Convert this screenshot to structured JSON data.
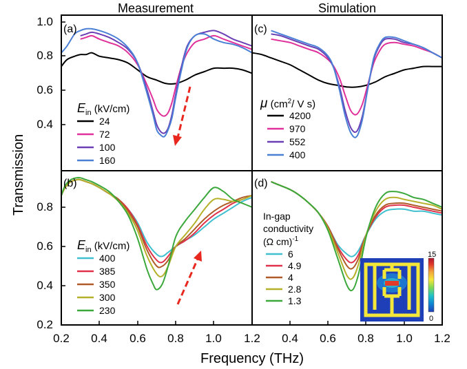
{
  "figure": {
    "left_title": "Measurement",
    "right_title": "Simulation",
    "xlabel": "Frequency (THz)",
    "ylabel": "Transmission",
    "x_ticks": [
      "0.2",
      "0.4",
      "0.6",
      "0.8",
      "1.0",
      "1.2"
    ],
    "y_ticks_top": [
      "1.0",
      "0.8",
      "0.6",
      "0.4"
    ],
    "y_ticks_bottom": [
      "0.8",
      "0.6",
      "0.4",
      "0.2"
    ],
    "inset": {
      "colorbar_max": "15",
      "colorbar_min": "0",
      "colors": [
        "#1f3fb8",
        "#0e86d4",
        "#1ec3c9",
        "#7ed957",
        "#f5e63a",
        "#f2a23a",
        "#e23b2a",
        "#b0122b"
      ]
    }
  },
  "chart_data": [
    {
      "type": "line",
      "panel": "(a)",
      "column": "Measurement",
      "xlim": [
        0.2,
        1.2
      ],
      "ylim": [
        0.25,
        1.0
      ],
      "legend_title": "E_in (kV/cm)",
      "legend_title_main": "E",
      "legend_title_sub": "in",
      "legend_title_unit": " (kV/cm)",
      "series": [
        {
          "name": "24",
          "color": "#000000",
          "x": [
            0.2,
            0.23,
            0.27,
            0.3,
            0.33,
            0.36,
            0.4,
            0.45,
            0.5,
            0.55,
            0.6,
            0.65,
            0.7,
            0.75,
            0.8,
            0.85,
            0.9,
            0.95,
            1.0,
            1.05,
            1.1,
            1.15,
            1.2
          ],
          "y": [
            0.74,
            0.78,
            0.8,
            0.81,
            0.81,
            0.82,
            0.8,
            0.79,
            0.78,
            0.76,
            0.72,
            0.68,
            0.66,
            0.64,
            0.64,
            0.66,
            0.69,
            0.71,
            0.73,
            0.73,
            0.73,
            0.72,
            0.7
          ]
        },
        {
          "name": "72",
          "color": "#e0309a",
          "x": [
            0.3,
            0.33,
            0.36,
            0.4,
            0.45,
            0.5,
            0.55,
            0.6,
            0.65,
            0.68,
            0.7,
            0.72,
            0.74,
            0.76,
            0.78,
            0.8,
            0.83,
            0.86,
            0.9,
            0.95,
            1.0,
            1.05,
            1.1,
            1.15,
            1.2
          ],
          "y": [
            0.9,
            0.91,
            0.92,
            0.9,
            0.88,
            0.86,
            0.82,
            0.75,
            0.63,
            0.55,
            0.49,
            0.46,
            0.45,
            0.47,
            0.53,
            0.62,
            0.74,
            0.82,
            0.88,
            0.9,
            0.92,
            0.9,
            0.88,
            0.86,
            0.84
          ]
        },
        {
          "name": "100",
          "color": "#6a3fb5",
          "x": [
            0.3,
            0.33,
            0.36,
            0.4,
            0.45,
            0.5,
            0.55,
            0.6,
            0.65,
            0.68,
            0.7,
            0.72,
            0.74,
            0.76,
            0.78,
            0.8,
            0.83,
            0.86,
            0.9,
            0.95,
            1.0,
            1.05,
            1.1,
            1.15,
            1.2
          ],
          "y": [
            0.92,
            0.93,
            0.94,
            0.93,
            0.91,
            0.88,
            0.84,
            0.76,
            0.6,
            0.48,
            0.4,
            0.36,
            0.35,
            0.38,
            0.46,
            0.58,
            0.74,
            0.86,
            0.92,
            0.94,
            0.95,
            0.93,
            0.9,
            0.88,
            0.86
          ]
        },
        {
          "name": "160",
          "color": "#4a7fd6",
          "x": [
            0.2,
            0.23,
            0.27,
            0.3,
            0.33,
            0.36,
            0.4,
            0.45,
            0.5,
            0.55,
            0.6,
            0.65,
            0.68,
            0.7,
            0.72,
            0.74,
            0.76,
            0.78,
            0.8,
            0.83,
            0.86,
            0.9,
            0.95,
            1.0,
            1.05,
            1.1,
            1.15,
            1.2
          ],
          "y": [
            0.82,
            0.86,
            0.93,
            0.95,
            0.96,
            0.96,
            0.95,
            0.93,
            0.9,
            0.85,
            0.76,
            0.58,
            0.46,
            0.37,
            0.34,
            0.33,
            0.37,
            0.44,
            0.56,
            0.72,
            0.85,
            0.92,
            0.93,
            0.9,
            0.88,
            0.87,
            0.85,
            0.82
          ]
        }
      ]
    },
    {
      "type": "line",
      "panel": "(b)",
      "column": "Measurement",
      "xlim": [
        0.2,
        1.2
      ],
      "ylim": [
        0.2,
        0.95
      ],
      "legend_title": "E_in (kV/cm)",
      "legend_title_main": "E",
      "legend_title_sub": "in",
      "legend_title_unit": " (kV/cm)",
      "series": [
        {
          "name": "400",
          "color": "#3fbfcf",
          "x": [
            0.2,
            0.22,
            0.25,
            0.28,
            0.3,
            0.33,
            0.36,
            0.4,
            0.45,
            0.5,
            0.55,
            0.6,
            0.65,
            0.7,
            0.73,
            0.76,
            0.8,
            0.85,
            0.9,
            0.95,
            1.0,
            1.05,
            1.1,
            1.15,
            1.2
          ],
          "y": [
            0.86,
            0.9,
            0.93,
            0.94,
            0.94,
            0.93,
            0.92,
            0.9,
            0.87,
            0.84,
            0.79,
            0.72,
            0.62,
            0.56,
            0.55,
            0.57,
            0.6,
            0.63,
            0.66,
            0.7,
            0.74,
            0.77,
            0.8,
            0.83,
            0.85
          ]
        },
        {
          "name": "385",
          "color": "#e0304a",
          "x": [
            0.2,
            0.22,
            0.25,
            0.28,
            0.3,
            0.33,
            0.36,
            0.4,
            0.45,
            0.5,
            0.55,
            0.6,
            0.65,
            0.7,
            0.73,
            0.76,
            0.8,
            0.85,
            0.9,
            0.95,
            1.0,
            1.05,
            1.1,
            1.15,
            1.2
          ],
          "y": [
            0.86,
            0.9,
            0.93,
            0.94,
            0.94,
            0.93,
            0.92,
            0.9,
            0.87,
            0.84,
            0.79,
            0.71,
            0.6,
            0.53,
            0.52,
            0.55,
            0.6,
            0.63,
            0.67,
            0.72,
            0.76,
            0.79,
            0.82,
            0.84,
            0.86
          ]
        },
        {
          "name": "350",
          "color": "#b05a28",
          "x": [
            0.2,
            0.22,
            0.25,
            0.28,
            0.3,
            0.33,
            0.36,
            0.4,
            0.45,
            0.5,
            0.55,
            0.6,
            0.65,
            0.7,
            0.73,
            0.76,
            0.8,
            0.85,
            0.9,
            0.95,
            1.0,
            1.05,
            1.1,
            1.15,
            1.2
          ],
          "y": [
            0.86,
            0.9,
            0.93,
            0.94,
            0.94,
            0.93,
            0.92,
            0.9,
            0.87,
            0.84,
            0.78,
            0.7,
            0.58,
            0.5,
            0.5,
            0.53,
            0.6,
            0.64,
            0.69,
            0.74,
            0.78,
            0.81,
            0.83,
            0.85,
            0.86
          ]
        },
        {
          "name": "300",
          "color": "#b5b02a",
          "x": [
            0.2,
            0.22,
            0.25,
            0.28,
            0.3,
            0.33,
            0.36,
            0.4,
            0.45,
            0.5,
            0.55,
            0.6,
            0.65,
            0.7,
            0.73,
            0.76,
            0.8,
            0.85,
            0.9,
            0.95,
            1.0,
            1.05,
            1.1,
            1.15,
            1.2
          ],
          "y": [
            0.86,
            0.9,
            0.93,
            0.94,
            0.94,
            0.93,
            0.92,
            0.9,
            0.87,
            0.83,
            0.77,
            0.68,
            0.55,
            0.46,
            0.45,
            0.5,
            0.6,
            0.66,
            0.72,
            0.79,
            0.84,
            0.84,
            0.83,
            0.84,
            0.86
          ]
        },
        {
          "name": "230",
          "color": "#3aa83a",
          "x": [
            0.2,
            0.22,
            0.25,
            0.28,
            0.3,
            0.33,
            0.36,
            0.4,
            0.45,
            0.5,
            0.55,
            0.6,
            0.65,
            0.68,
            0.7,
            0.73,
            0.76,
            0.8,
            0.85,
            0.9,
            0.95,
            1.0,
            1.05,
            1.1,
            1.15,
            1.2
          ],
          "y": [
            0.86,
            0.91,
            0.94,
            0.95,
            0.95,
            0.94,
            0.93,
            0.91,
            0.88,
            0.83,
            0.76,
            0.64,
            0.48,
            0.41,
            0.38,
            0.41,
            0.5,
            0.65,
            0.73,
            0.79,
            0.85,
            0.9,
            0.88,
            0.84,
            0.82,
            0.8
          ]
        }
      ]
    },
    {
      "type": "line",
      "panel": "(c)",
      "column": "Simulation",
      "xlim": [
        0.2,
        1.2
      ],
      "ylim": [
        0.25,
        1.0
      ],
      "legend_title": "μ (cm2/ V s)",
      "legend_title_main": "μ",
      "legend_title_unit": " (cm",
      "legend_title_sup": "2",
      "legend_title_tail": "/ V s)",
      "series": [
        {
          "name": "4200",
          "color": "#000000",
          "x": [
            0.2,
            0.25,
            0.3,
            0.35,
            0.4,
            0.45,
            0.5,
            0.55,
            0.6,
            0.65,
            0.7,
            0.75,
            0.8,
            0.85,
            0.9,
            0.95,
            1.0,
            1.05,
            1.1,
            1.15,
            1.2
          ],
          "y": [
            0.82,
            0.81,
            0.79,
            0.77,
            0.75,
            0.72,
            0.69,
            0.66,
            0.64,
            0.63,
            0.62,
            0.62,
            0.63,
            0.65,
            0.68,
            0.7,
            0.72,
            0.73,
            0.74,
            0.74,
            0.74
          ]
        },
        {
          "name": "970",
          "color": "#e0309a",
          "x": [
            0.3,
            0.35,
            0.4,
            0.45,
            0.5,
            0.55,
            0.6,
            0.63,
            0.66,
            0.69,
            0.72,
            0.75,
            0.78,
            0.81,
            0.84,
            0.87,
            0.9,
            0.95,
            1.0,
            1.05,
            1.1,
            1.15,
            1.2
          ],
          "y": [
            0.9,
            0.89,
            0.88,
            0.86,
            0.84,
            0.82,
            0.78,
            0.74,
            0.67,
            0.57,
            0.48,
            0.46,
            0.52,
            0.64,
            0.76,
            0.83,
            0.87,
            0.88,
            0.87,
            0.86,
            0.84,
            0.82,
            0.79
          ]
        },
        {
          "name": "552",
          "color": "#6a3fb5",
          "x": [
            0.3,
            0.35,
            0.4,
            0.45,
            0.5,
            0.55,
            0.6,
            0.63,
            0.66,
            0.69,
            0.72,
            0.75,
            0.78,
            0.81,
            0.84,
            0.87,
            0.9,
            0.95,
            1.0,
            1.05,
            1.1,
            1.15,
            1.2
          ],
          "y": [
            0.93,
            0.92,
            0.9,
            0.88,
            0.86,
            0.84,
            0.79,
            0.73,
            0.62,
            0.48,
            0.38,
            0.36,
            0.45,
            0.62,
            0.78,
            0.86,
            0.9,
            0.9,
            0.88,
            0.87,
            0.85,
            0.82,
            0.79
          ]
        },
        {
          "name": "400",
          "color": "#4a7fd6",
          "x": [
            0.3,
            0.35,
            0.4,
            0.45,
            0.5,
            0.55,
            0.6,
            0.63,
            0.66,
            0.69,
            0.72,
            0.75,
            0.78,
            0.81,
            0.84,
            0.87,
            0.9,
            0.95,
            1.0,
            1.05,
            1.1,
            1.15,
            1.2
          ],
          "y": [
            0.95,
            0.93,
            0.91,
            0.89,
            0.87,
            0.85,
            0.8,
            0.73,
            0.6,
            0.45,
            0.35,
            0.33,
            0.43,
            0.62,
            0.79,
            0.87,
            0.91,
            0.91,
            0.89,
            0.87,
            0.85,
            0.82,
            0.79
          ]
        }
      ]
    },
    {
      "type": "line",
      "panel": "(d)",
      "column": "Simulation",
      "xlim": [
        0.2,
        1.2
      ],
      "ylim": [
        0.2,
        0.95
      ],
      "legend_title_lines": [
        "In-gap",
        "conductivity",
        "(Ω cm)"
      ],
      "legend_title_sup": "-1",
      "series": [
        {
          "name": "6",
          "color": "#3fbfcf",
          "x": [
            0.3,
            0.35,
            0.4,
            0.45,
            0.5,
            0.55,
            0.6,
            0.65,
            0.7,
            0.73,
            0.76,
            0.8,
            0.85,
            0.9,
            0.95,
            1.0,
            1.05,
            1.1,
            1.15,
            1.2
          ],
          "y": [
            0.93,
            0.91,
            0.89,
            0.86,
            0.82,
            0.77,
            0.7,
            0.61,
            0.56,
            0.55,
            0.58,
            0.66,
            0.74,
            0.78,
            0.79,
            0.79,
            0.78,
            0.78,
            0.77,
            0.76
          ]
        },
        {
          "name": "4.9",
          "color": "#e0304a",
          "x": [
            0.3,
            0.35,
            0.4,
            0.45,
            0.5,
            0.55,
            0.6,
            0.65,
            0.7,
            0.73,
            0.76,
            0.8,
            0.85,
            0.9,
            0.95,
            1.0,
            1.05,
            1.1,
            1.15,
            1.2
          ],
          "y": [
            0.93,
            0.91,
            0.89,
            0.86,
            0.82,
            0.77,
            0.7,
            0.6,
            0.53,
            0.52,
            0.56,
            0.66,
            0.75,
            0.8,
            0.81,
            0.81,
            0.8,
            0.79,
            0.78,
            0.77
          ]
        },
        {
          "name": "4",
          "color": "#b05a28",
          "x": [
            0.3,
            0.35,
            0.4,
            0.45,
            0.5,
            0.55,
            0.6,
            0.65,
            0.7,
            0.73,
            0.76,
            0.8,
            0.85,
            0.9,
            0.95,
            1.0,
            1.05,
            1.1,
            1.15,
            1.2
          ],
          "y": [
            0.93,
            0.91,
            0.89,
            0.86,
            0.82,
            0.77,
            0.7,
            0.59,
            0.5,
            0.49,
            0.54,
            0.66,
            0.76,
            0.81,
            0.82,
            0.82,
            0.81,
            0.8,
            0.79,
            0.78
          ]
        },
        {
          "name": "2.8",
          "color": "#b5b02a",
          "x": [
            0.3,
            0.35,
            0.4,
            0.45,
            0.5,
            0.55,
            0.6,
            0.65,
            0.7,
            0.73,
            0.76,
            0.8,
            0.85,
            0.9,
            0.95,
            1.0,
            1.05,
            1.1,
            1.15,
            1.2
          ],
          "y": [
            0.93,
            0.91,
            0.89,
            0.86,
            0.82,
            0.77,
            0.69,
            0.57,
            0.45,
            0.44,
            0.51,
            0.66,
            0.78,
            0.84,
            0.85,
            0.84,
            0.83,
            0.82,
            0.81,
            0.79
          ]
        },
        {
          "name": "1.3",
          "color": "#3aa83a",
          "x": [
            0.3,
            0.35,
            0.4,
            0.45,
            0.5,
            0.55,
            0.6,
            0.65,
            0.7,
            0.73,
            0.76,
            0.8,
            0.85,
            0.9,
            0.95,
            1.0,
            1.05,
            1.1,
            1.15,
            1.2
          ],
          "y": [
            0.93,
            0.91,
            0.89,
            0.86,
            0.82,
            0.77,
            0.68,
            0.54,
            0.4,
            0.38,
            0.46,
            0.65,
            0.8,
            0.87,
            0.88,
            0.87,
            0.85,
            0.84,
            0.82,
            0.8
          ]
        }
      ]
    }
  ]
}
